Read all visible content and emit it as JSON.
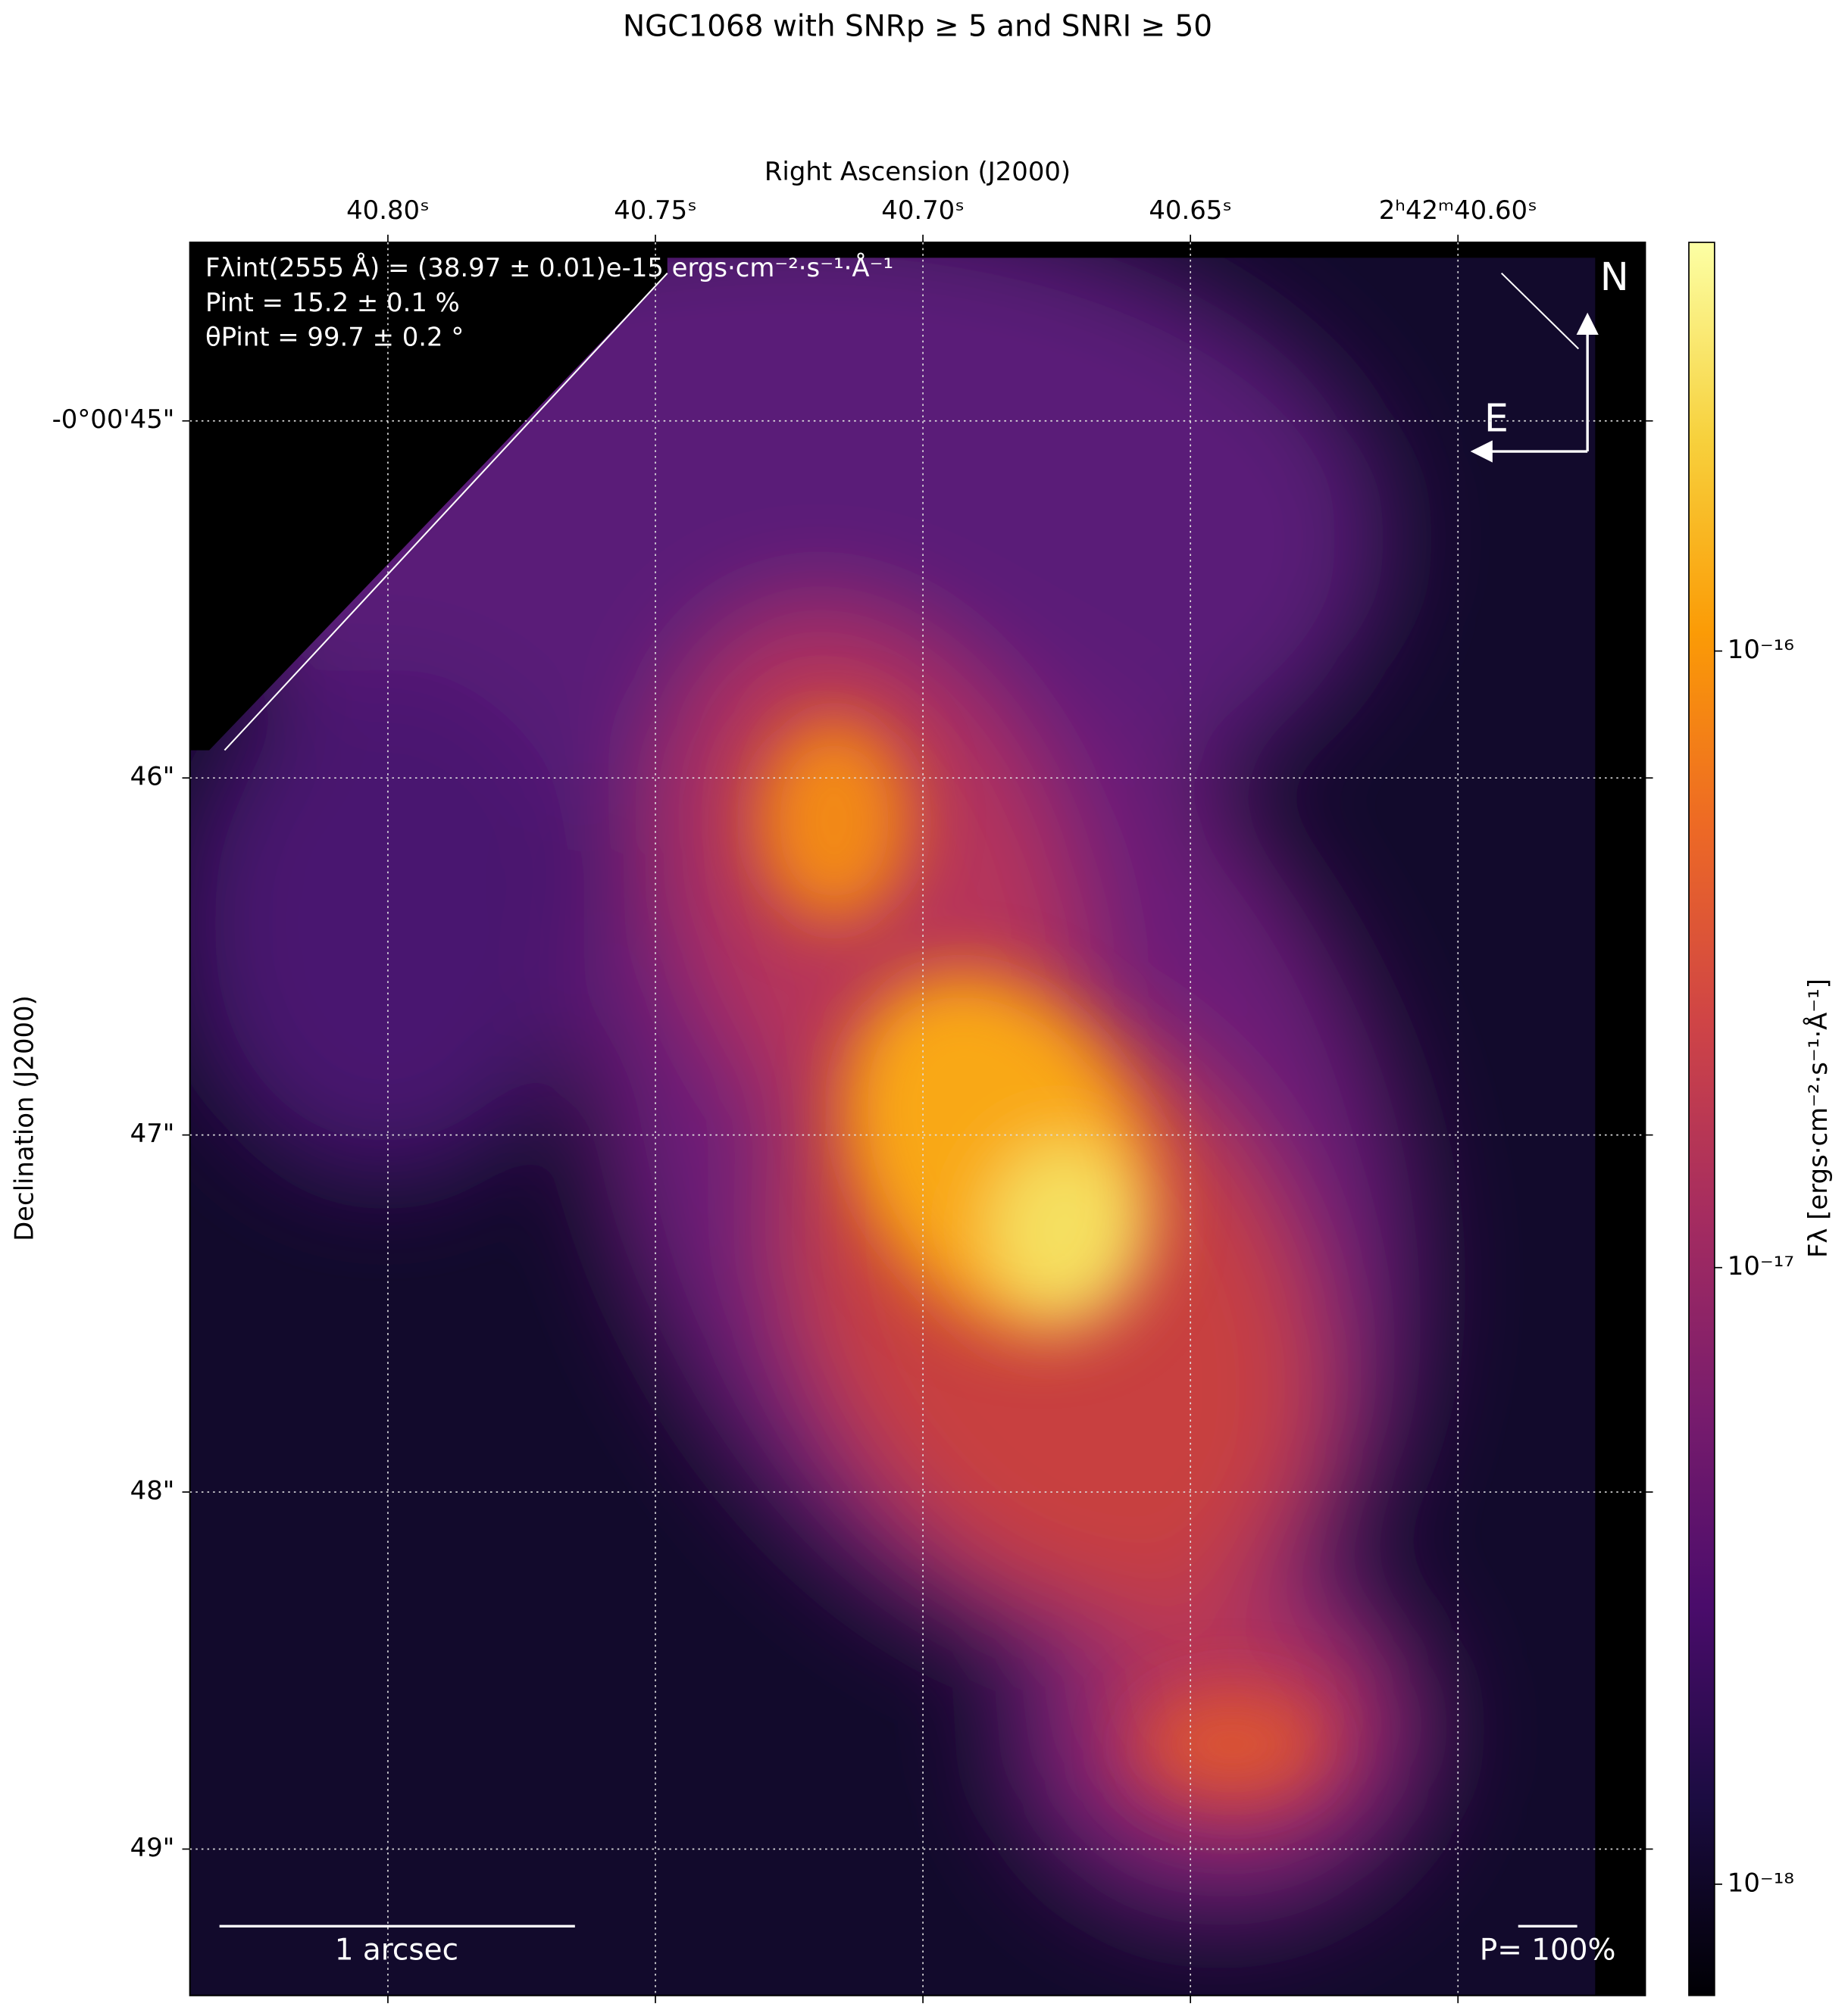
{
  "chart_data": {
    "type": "image",
    "title": "NGC1068 with SNRp ≥ 5 and SNRI ≥ 50",
    "xlabel": "Right Ascension (J2000)",
    "ylabel": "Declination (J2000)",
    "annotations": [
      "Fλint(2555 Å) = (38.97 ± 0.01)e-15 ergs·cm⁻²·s⁻¹·Å⁻¹",
      "Pint = 15.2 ± 0.1 %",
      "θPint = 99.7 ± 0.2 °"
    ],
    "xlim": [
      40.837,
      40.565
    ],
    "xticks": [
      {
        "value": 40.8,
        "label": "40.80ˢ"
      },
      {
        "value": 40.75,
        "label": "40.75ˢ"
      },
      {
        "value": 40.7,
        "label": "40.70ˢ"
      },
      {
        "value": 40.65,
        "label": "40.65ˢ"
      },
      {
        "value": 40.6,
        "label": "2ʰ42ᵐ40.60ˢ"
      }
    ],
    "ylim": [
      49.41,
      44.5
    ],
    "yticks": [
      {
        "value": 45,
        "label": "-0°00'45\""
      },
      {
        "value": 46,
        "label": "46\""
      },
      {
        "value": 47,
        "label": "47\""
      },
      {
        "value": 48,
        "label": "48\""
      },
      {
        "value": 49,
        "label": "49\""
      }
    ],
    "grid": true,
    "colorbar": {
      "label": "Fλ [ergs·cm⁻²·s⁻¹·Å⁻¹]",
      "scale": "log",
      "colormap": "inferno",
      "lim": [
        6.6e-19,
        4.6e-16
      ],
      "ticks": [
        {
          "value": 1e-16,
          "label": "10⁻¹⁶"
        },
        {
          "value": 1e-17,
          "label": "10⁻¹⁷"
        },
        {
          "value": 1e-18,
          "label": "10⁻¹⁸"
        }
      ]
    },
    "scalebar_label": "1 arcsec",
    "polarization_scale_label": "P= 100%",
    "compass": [
      "N",
      "E"
    ]
  }
}
